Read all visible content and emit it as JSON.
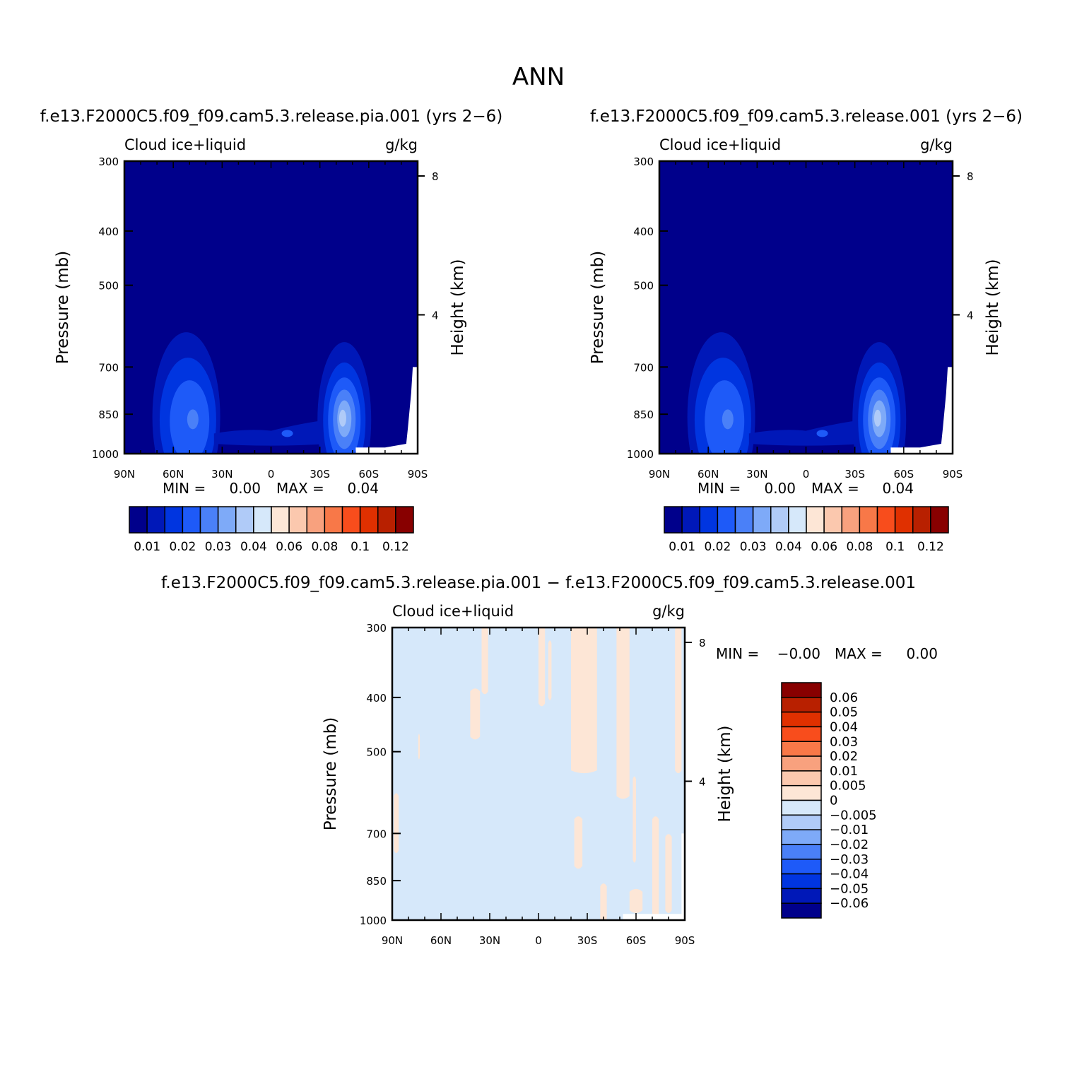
{
  "figure": {
    "title": "ANN",
    "colors": {
      "plot_background_panels": "#00008b",
      "plot_background_diff": "#d6e8fa",
      "missing": "#ffffff"
    }
  },
  "chart_data": [
    {
      "type": "heatmap",
      "panel": "left",
      "case_title": "f.e13.F2000C5.f09_f09.cam5.3.release.pia.001 (yrs 2−6)",
      "variable": "Cloud ice+liquid",
      "units": "g/kg",
      "ylabel": "Pressure (mb)",
      "y2label": "Height (km)",
      "xlim": [
        "90N",
        "90S"
      ],
      "ylim": [
        1000,
        300
      ],
      "y_scale": "log",
      "x_ticks": [
        "90N",
        "60N",
        "30N",
        "0",
        "30S",
        "60S",
        "90S"
      ],
      "y_ticks": [
        "300",
        "400",
        "500",
        "700",
        "850",
        "1000"
      ],
      "y2_ticks": [
        "8",
        "4"
      ],
      "stats": {
        "min_label": "MIN =",
        "min": "0.00",
        "max_label": "MAX =",
        "max": "0.04"
      },
      "colorbar": {
        "orientation": "horizontal",
        "levels": [
          "0.01",
          "0.02",
          "0.03",
          "0.04",
          "0.06",
          "0.08",
          "0.1",
          "0.12"
        ],
        "colors": [
          "#00008b",
          "#0018b8",
          "#0035e0",
          "#1e5af8",
          "#4a80f8",
          "#7eaaf8",
          "#b0cbf8",
          "#d6e8fa",
          "#fde6d6",
          "#fbc8ae",
          "#f8a17e",
          "#f87848",
          "#f84d1c",
          "#e03000",
          "#b82000",
          "#880000"
        ]
      },
      "features": [
        {
          "kind": "max",
          "lat": 48,
          "pressure": 865,
          "value": "0.04"
        },
        {
          "kind": "local-max",
          "lat": -45,
          "pressure": 870,
          "value": "0.04"
        }
      ]
    },
    {
      "type": "heatmap",
      "panel": "right",
      "case_title": "f.e13.F2000C5.f09_f09.cam5.3.release.001 (yrs 2−6)",
      "variable": "Cloud ice+liquid",
      "units": "g/kg",
      "ylabel": "Pressure (mb)",
      "y2label": "Height (km)",
      "xlim": [
        "90N",
        "90S"
      ],
      "ylim": [
        1000,
        300
      ],
      "y_scale": "log",
      "x_ticks": [
        "90N",
        "60N",
        "30N",
        "0",
        "30S",
        "60S",
        "90S"
      ],
      "y_ticks": [
        "300",
        "400",
        "500",
        "700",
        "850",
        "1000"
      ],
      "y2_ticks": [
        "8",
        "4"
      ],
      "stats": {
        "min_label": "MIN =",
        "min": "0.00",
        "max_label": "MAX =",
        "max": "0.04"
      },
      "colorbar": {
        "orientation": "horizontal",
        "levels": [
          "0.01",
          "0.02",
          "0.03",
          "0.04",
          "0.06",
          "0.08",
          "0.1",
          "0.12"
        ],
        "colors": [
          "#00008b",
          "#0018b8",
          "#0035e0",
          "#1e5af8",
          "#4a80f8",
          "#7eaaf8",
          "#b0cbf8",
          "#d6e8fa",
          "#fde6d6",
          "#fbc8ae",
          "#f8a17e",
          "#f87848",
          "#f84d1c",
          "#e03000",
          "#b82000",
          "#880000"
        ]
      },
      "features": [
        {
          "kind": "max",
          "lat": 48,
          "pressure": 865,
          "value": "0.04"
        },
        {
          "kind": "local-max",
          "lat": -45,
          "pressure": 870,
          "value": "0.04"
        }
      ]
    },
    {
      "type": "heatmap",
      "panel": "difference",
      "case_title": "f.e13.F2000C5.f09_f09.cam5.3.release.pia.001 − f.e13.F2000C5.f09_f09.cam5.3.release.001",
      "variable": "Cloud ice+liquid",
      "units": "g/kg",
      "ylabel": "Pressure (mb)",
      "y2label": "Height (km)",
      "xlim": [
        "90N",
        "90S"
      ],
      "ylim": [
        1000,
        300
      ],
      "y_scale": "log",
      "x_ticks": [
        "90N",
        "60N",
        "30N",
        "0",
        "30S",
        "60S",
        "90S"
      ],
      "y_ticks": [
        "300",
        "400",
        "500",
        "700",
        "850",
        "1000"
      ],
      "y2_ticks": [
        "8",
        "4"
      ],
      "stats": {
        "min_label": "MIN =",
        "min": "−0.00",
        "max_label": "MAX =",
        "max": "0.00"
      },
      "colorbar": {
        "orientation": "vertical",
        "levels": [
          "0.06",
          "0.05",
          "0.04",
          "0.03",
          "0.02",
          "0.01",
          "0.005",
          "0",
          "−0.005",
          "−0.01",
          "−0.02",
          "−0.03",
          "−0.04",
          "−0.05",
          "−0.06"
        ],
        "colors": [
          "#880000",
          "#b82000",
          "#e03000",
          "#f84d1c",
          "#f87848",
          "#f8a17e",
          "#fbc8ae",
          "#fde6d6",
          "#d6e8fa",
          "#b0cbf8",
          "#7eaaf8",
          "#4a80f8",
          "#1e5af8",
          "#0035e0",
          "#0018b8",
          "#00008b"
        ]
      },
      "features": [
        {
          "kind": "field",
          "value_range": [
            "-0.005",
            "0.005"
          ],
          "note_positive_patches": [
            "0.005"
          ]
        }
      ]
    }
  ]
}
